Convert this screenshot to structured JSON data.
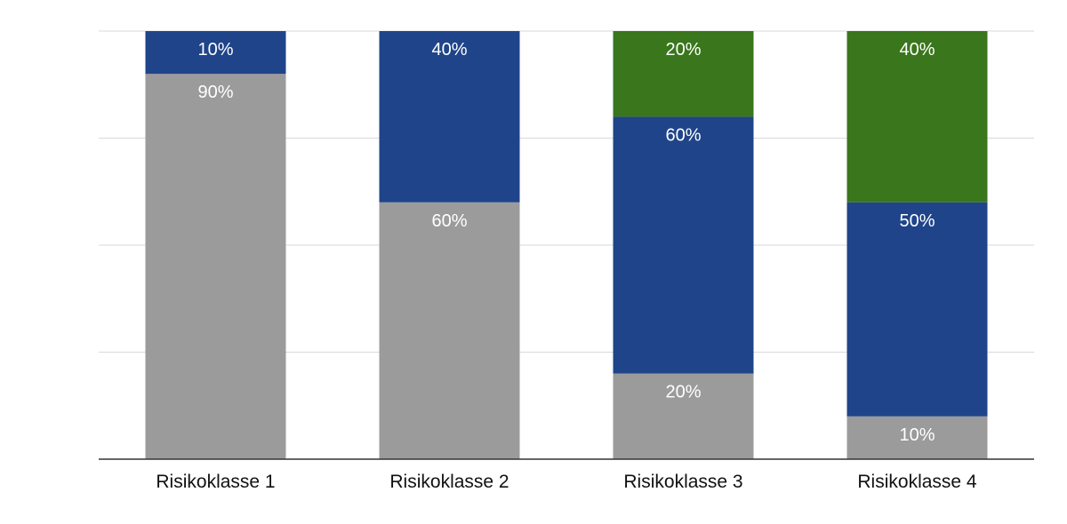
{
  "chart_data": {
    "type": "bar",
    "stacked": true,
    "categories": [
      "Risikoklasse 1",
      "Risikoklasse 2",
      "Risikoklasse 3",
      "Risikoklasse 4"
    ],
    "series": [
      {
        "color": "#9b9b9b",
        "values": [
          90,
          60,
          20,
          10
        ],
        "labels": [
          "90%",
          "60%",
          "20%",
          "10%"
        ]
      },
      {
        "color": "#1f4489",
        "values": [
          10,
          40,
          60,
          50
        ],
        "labels": [
          "10%",
          "40%",
          "60%",
          "50%"
        ]
      },
      {
        "color": "#39761c",
        "values": [
          0,
          0,
          20,
          40
        ],
        "labels": [
          "",
          "",
          "20%",
          "40%"
        ]
      }
    ],
    "ylim": [
      0,
      100
    ],
    "gridlines": [
      25,
      50,
      75,
      100
    ],
    "grid": true,
    "legend": "none",
    "title": "",
    "xlabel": "",
    "ylabel": ""
  }
}
